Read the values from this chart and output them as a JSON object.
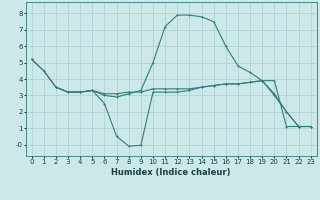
{
  "xlabel": "Humidex (Indice chaleur)",
  "background_color": "#cce8e8",
  "grid_color": "#aacfcf",
  "line_color": "#2d7f7f",
  "xlim": [
    -0.5,
    23.5
  ],
  "ylim": [
    -0.7,
    8.7
  ],
  "xticks": [
    0,
    1,
    2,
    3,
    4,
    5,
    6,
    7,
    8,
    9,
    10,
    11,
    12,
    13,
    14,
    15,
    16,
    17,
    18,
    19,
    20,
    21,
    22,
    23
  ],
  "yticks": [
    0,
    1,
    2,
    3,
    4,
    5,
    6,
    7,
    8
  ],
  "ytick_labels": [
    "-0",
    "1",
    "2",
    "3",
    "4",
    "5",
    "6",
    "7",
    "8"
  ],
  "line1_x": [
    0,
    1,
    2,
    3,
    4,
    5,
    6,
    7,
    8,
    9,
    10,
    11,
    12,
    13,
    14,
    15,
    16,
    17,
    18,
    19,
    20,
    21,
    22,
    23
  ],
  "line1_y": [
    5.2,
    4.5,
    3.5,
    3.2,
    3.2,
    3.3,
    3.0,
    2.9,
    3.1,
    3.3,
    5.0,
    7.2,
    7.9,
    7.9,
    7.8,
    7.5,
    6.0,
    4.8,
    4.4,
    3.9,
    3.0,
    2.0,
    1.1,
    1.1
  ],
  "line2_x": [
    0,
    1,
    2,
    3,
    4,
    5,
    6,
    7,
    8,
    9,
    10,
    11,
    12,
    13,
    14,
    15,
    16,
    17,
    18,
    19,
    20,
    21,
    22,
    23
  ],
  "line2_y": [
    5.2,
    4.5,
    3.5,
    3.2,
    3.2,
    3.3,
    2.5,
    0.5,
    -0.1,
    -0.05,
    3.2,
    3.2,
    3.2,
    3.3,
    3.5,
    3.6,
    3.7,
    3.7,
    3.8,
    3.9,
    3.9,
    1.1,
    1.1,
    1.1
  ],
  "line3_x": [
    2,
    3,
    4,
    5,
    6,
    7,
    8,
    9,
    10,
    11,
    12,
    13,
    14,
    15,
    16,
    17,
    18,
    19,
    20,
    21,
    22,
    23
  ],
  "line3_y": [
    3.5,
    3.2,
    3.2,
    3.3,
    3.1,
    3.1,
    3.2,
    3.2,
    3.4,
    3.4,
    3.4,
    3.4,
    3.5,
    3.6,
    3.7,
    3.7,
    3.8,
    3.9,
    3.1,
    2.0,
    1.1,
    1.1
  ],
  "tick_fontsize": 5.0,
  "xlabel_fontsize": 6.0,
  "linewidth": 0.8,
  "markersize": 2.0
}
